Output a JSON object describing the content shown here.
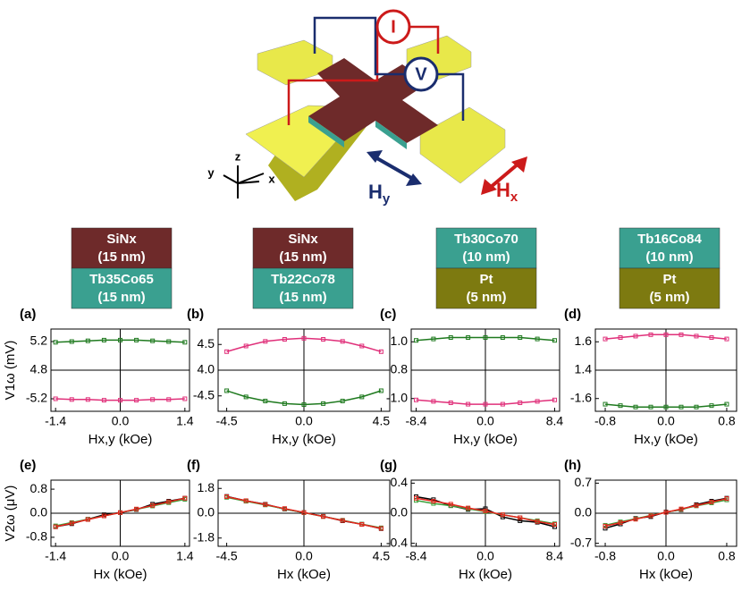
{
  "diagram": {
    "current": "I",
    "voltage": "V",
    "axis_z": "z",
    "axis_y": "y",
    "axis_x": "x",
    "field_y": {
      "main": "H",
      "sub": "y"
    },
    "field_x": {
      "main": "H",
      "sub": "x"
    }
  },
  "stacks": [
    {
      "top": {
        "name": "SiNx",
        "thickness": "(15 nm)"
      },
      "bottom": {
        "name": "Tb35Co65",
        "thickness": "(15 nm)"
      }
    },
    {
      "top": {
        "name": "SiNx",
        "thickness": "(15 nm)"
      },
      "bottom": {
        "name": "Tb22Co78",
        "thickness": "(15 nm)"
      }
    },
    {
      "top": {
        "name": "Tb30Co70",
        "thickness": "(10 nm)"
      },
      "bottom": {
        "name": "Pt",
        "thickness": "(5 nm)"
      }
    },
    {
      "top": {
        "name": "Tb16Co84",
        "thickness": "(10 nm)"
      },
      "bottom": {
        "name": "Pt",
        "thickness": "(5 nm)"
      }
    }
  ],
  "chart_data": [
    {
      "type": "line",
      "label": "(a)",
      "xlabel": "Hx,y (kOe)",
      "ylabel": "V1ω (mV)",
      "x": [
        -1.4,
        -1.05,
        -0.7,
        -0.35,
        0,
        0.35,
        0.7,
        1.05,
        1.4
      ],
      "series": [
        {
          "color": "#1f7a1f",
          "values": [
            5.19,
            5.2,
            5.21,
            5.22,
            5.22,
            5.22,
            5.21,
            5.2,
            5.19
          ]
        },
        {
          "color": "#e0307a",
          "values": [
            -5.2,
            -5.21,
            -5.21,
            -5.22,
            -5.22,
            -5.22,
            -5.21,
            -5.21,
            -5.2
          ]
        }
      ],
      "xlim": [
        -1.5,
        1.5
      ],
      "xticks": [
        -1.4,
        {
          "value": 0,
          "label": "0.0"
        },
        1.4
      ],
      "ylim": [
        -5.375,
        5.375
      ],
      "ybreak": [
        -4.8,
        4.8
      ],
      "yticks": [
        5.2,
        4.8,
        -5.2
      ]
    },
    {
      "type": "line",
      "label": "(b)",
      "xlabel": "Hx,y (kOe)",
      "x": [
        -4.5,
        -3.375,
        -2.25,
        -1.125,
        0,
        1.125,
        2.25,
        3.375,
        4.5
      ],
      "series": [
        {
          "color": "#1f7a1f",
          "values": [
            -4.4,
            -4.52,
            -4.6,
            -4.65,
            -4.67,
            -4.65,
            -4.6,
            -4.52,
            -4.4
          ]
        },
        {
          "color": "#e0307a",
          "values": [
            4.36,
            4.47,
            4.56,
            4.6,
            4.62,
            4.6,
            4.56,
            4.47,
            4.36
          ]
        }
      ],
      "xlim": [
        -5.0,
        5.0
      ],
      "xticks": [
        -4.5,
        {
          "value": 0,
          "label": "0.0"
        },
        4.5
      ],
      "ylim": [
        -4.8,
        4.8
      ],
      "ybreak": [
        -4.0,
        4.0
      ],
      "yticks": [
        4.5,
        {
          "value": 4,
          "label": "4.0"
        },
        -4.5
      ]
    },
    {
      "type": "line",
      "label": "(c)",
      "xlabel": "Hx,y (kOe)",
      "x": [
        -8.4,
        -6.3,
        -4.2,
        -2.1,
        0,
        2.1,
        4.2,
        6.3,
        8.4
      ],
      "series": [
        {
          "color": "#1f7a1f",
          "values": [
            1.01,
            1.02,
            1.03,
            1.03,
            1.03,
            1.03,
            1.03,
            1.02,
            1.01
          ]
        },
        {
          "color": "#e0307a",
          "values": [
            -1.01,
            -1.02,
            -1.03,
            -1.04,
            -1.04,
            -1.04,
            -1.03,
            -1.02,
            -1.01
          ]
        }
      ],
      "xlim": [
        -9.0,
        9.0
      ],
      "xticks": [
        -8.4,
        {
          "value": 0,
          "label": "0.0"
        },
        8.4
      ],
      "ylim": [
        -1.09,
        1.09
      ],
      "ybreak": [
        -0.8,
        0.8
      ],
      "yticks": [
        {
          "value": 1,
          "label": "1.0"
        },
        0.8,
        {
          "value": -1,
          "label": "-1.0"
        }
      ]
    },
    {
      "type": "line",
      "label": "(d)",
      "xlabel": "Hx,y (kOe)",
      "x": [
        -0.8,
        -0.6,
        -0.4,
        -0.2,
        0,
        0.2,
        0.4,
        0.6,
        0.8
      ],
      "series": [
        {
          "color": "#1f7a1f",
          "values": [
            -1.64,
            -1.65,
            -1.66,
            -1.66,
            -1.66,
            -1.66,
            -1.66,
            -1.65,
            -1.64
          ]
        },
        {
          "color": "#e0307a",
          "values": [
            1.62,
            1.63,
            1.64,
            1.65,
            1.65,
            1.65,
            1.64,
            1.63,
            1.62
          ]
        }
      ],
      "xlim": [
        -0.93,
        0.93
      ],
      "xticks": [
        -0.8,
        {
          "value": 0,
          "label": "0.0"
        },
        0.8
      ],
      "ylim": [
        -1.69,
        1.69
      ],
      "ybreak": [
        -1.4,
        1.4
      ],
      "yticks": [
        1.6,
        1.4,
        -1.6
      ]
    },
    {
      "type": "line",
      "label": "(e)",
      "xlabel": "Hx (kOe)",
      "ylabel": "V2ω (μV)",
      "x": [
        -1.4,
        -1.05,
        -0.7,
        -0.35,
        0,
        0.35,
        0.7,
        1.05,
        1.4
      ],
      "series": [
        {
          "color": "#000000",
          "values": [
            -0.45,
            -0.35,
            -0.2,
            -0.05,
            0.02,
            0.12,
            0.3,
            0.4,
            0.5
          ]
        },
        {
          "color": "#3ca03c",
          "values": [
            -0.42,
            -0.31,
            -0.2,
            -0.09,
            0.02,
            0.13,
            0.24,
            0.35,
            0.46
          ]
        },
        {
          "color": "#e8241c",
          "values": [
            -0.45,
            -0.33,
            -0.21,
            -0.09,
            0.02,
            0.14,
            0.26,
            0.38,
            0.5
          ]
        }
      ],
      "xlim": [
        -1.5,
        1.5
      ],
      "xticks": [
        -1.4,
        {
          "value": 0,
          "label": "0.0"
        },
        1.4
      ],
      "ylim": [
        -1.1,
        1.1
      ],
      "yticks": [
        0.8,
        {
          "value": 0,
          "label": "0.0"
        },
        -0.8
      ]
    },
    {
      "type": "line",
      "label": "(f)",
      "xlabel": "Hx (kOe)",
      "x": [
        -4.5,
        -3.375,
        -2.25,
        -1.125,
        0,
        1.125,
        2.25,
        3.375,
        4.5
      ],
      "series": [
        {
          "color": "#000000",
          "values": [
            1.22,
            0.9,
            0.65,
            0.3,
            0.05,
            -0.22,
            -0.55,
            -0.8,
            -1.12
          ]
        },
        {
          "color": "#3ca03c",
          "values": [
            1.15,
            0.87,
            0.6,
            0.32,
            0.04,
            -0.24,
            -0.51,
            -0.79,
            -1.06
          ]
        },
        {
          "color": "#e8241c",
          "values": [
            1.2,
            0.91,
            0.63,
            0.34,
            0.05,
            -0.24,
            -0.53,
            -0.81,
            -1.1
          ]
        }
      ],
      "xlim": [
        -5.0,
        5.0
      ],
      "xticks": [
        -4.5,
        {
          "value": 0,
          "label": "0.0"
        },
        4.5
      ],
      "ylim": [
        -2.4,
        2.4
      ],
      "yticks": [
        1.8,
        {
          "value": 0,
          "label": "0.0"
        },
        -1.8
      ]
    },
    {
      "type": "line",
      "label": "(g)",
      "xlabel": "Hx (kOe)",
      "x": [
        -8.4,
        -6.3,
        -4.2,
        -2.1,
        0,
        2.1,
        4.2,
        6.3,
        8.4
      ],
      "series": [
        {
          "color": "#000000",
          "values": [
            0.22,
            0.18,
            0.1,
            0.05,
            0.06,
            -0.05,
            -0.1,
            -0.12,
            -0.18
          ]
        },
        {
          "color": "#3ca03c",
          "values": [
            0.17,
            0.13,
            0.1,
            0.06,
            0.02,
            -0.02,
            -0.06,
            -0.1,
            -0.14
          ]
        },
        {
          "color": "#e8241c",
          "values": [
            0.2,
            0.16,
            0.12,
            0.07,
            0.03,
            -0.02,
            -0.06,
            -0.11,
            -0.15
          ]
        }
      ],
      "xlim": [
        -9.0,
        9.0
      ],
      "xticks": [
        -8.4,
        {
          "value": 0,
          "label": "0.0"
        },
        8.4
      ],
      "ylim": [
        -0.44,
        0.44
      ],
      "yticks": [
        0.4,
        {
          "value": 0,
          "label": "0.0"
        },
        -0.4
      ]
    },
    {
      "type": "line",
      "label": "(h)",
      "xlabel": "Hx (kOe)",
      "x": [
        -0.8,
        -0.6,
        -0.4,
        -0.2,
        0,
        0.2,
        0.4,
        0.6,
        0.8
      ],
      "series": [
        {
          "color": "#000000",
          "values": [
            -0.35,
            -0.25,
            -0.12,
            -0.08,
            0.03,
            0.08,
            0.2,
            0.28,
            0.35
          ]
        },
        {
          "color": "#3ca03c",
          "values": [
            -0.28,
            -0.2,
            -0.13,
            -0.05,
            0.02,
            0.09,
            0.17,
            0.24,
            0.31
          ]
        },
        {
          "color": "#e8241c",
          "values": [
            -0.3,
            -0.22,
            -0.14,
            -0.06,
            0.02,
            0.1,
            0.18,
            0.26,
            0.34
          ]
        }
      ],
      "xlim": [
        -0.93,
        0.93
      ],
      "xticks": [
        -0.8,
        {
          "value": 0,
          "label": "0.0"
        },
        0.8
      ],
      "ylim": [
        -0.77,
        0.77
      ],
      "yticks": [
        0.7,
        {
          "value": 0,
          "label": "0.0"
        },
        -0.7
      ]
    }
  ]
}
